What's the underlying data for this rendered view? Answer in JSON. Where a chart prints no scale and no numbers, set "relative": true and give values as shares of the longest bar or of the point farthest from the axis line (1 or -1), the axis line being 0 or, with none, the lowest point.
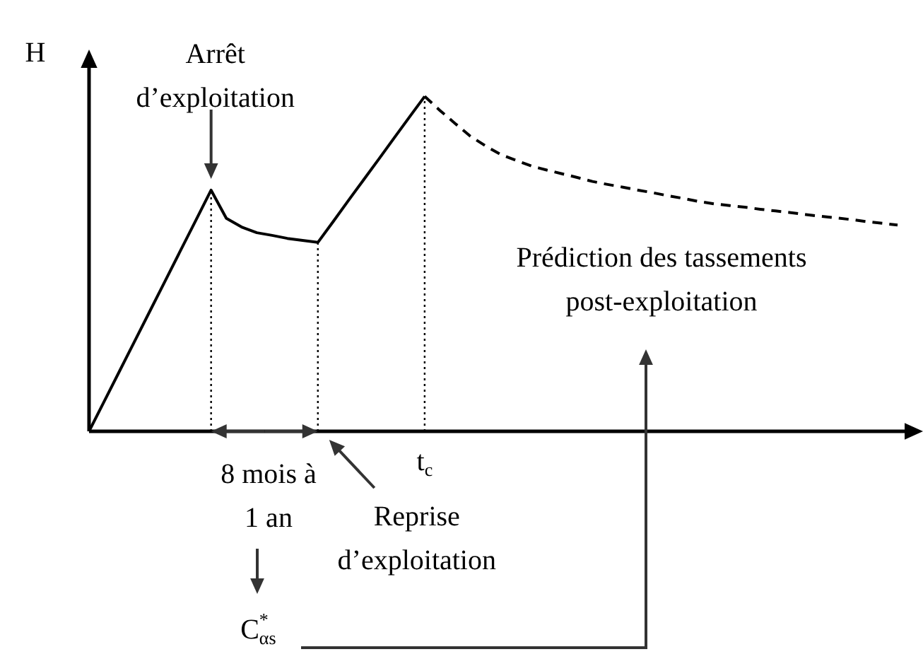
{
  "chart_data": {
    "type": "line",
    "relative": true,
    "ylabel": "H",
    "categories": [
      null,
      null,
      null,
      null,
      null,
      null,
      null,
      null,
      null,
      null,
      null,
      null,
      null,
      null,
      null,
      null,
      null,
      null,
      null,
      null,
      null,
      null,
      null,
      null,
      null,
      null,
      null,
      null,
      null,
      null,
      null,
      null,
      null,
      null,
      null,
      null,
      null,
      null,
      null,
      null,
      null,
      null,
      null,
      null,
      null,
      null,
      null,
      null,
      null,
      null,
      null,
      null,
      null,
      null
    ],
    "series": [
      {
        "values": [
          0,
          0.09,
          0.18,
          0.27,
          0.36,
          0.45,
          0.54,
          0.63,
          0.72,
          0.636,
          0.61,
          0.593,
          0.585,
          0.576,
          0.57,
          0.564,
          0.626,
          0.689,
          0.751,
          0.813,
          0.876,
          0.938,
          1,
          null,
          null,
          null,
          null,
          null,
          null,
          null,
          null,
          null,
          null,
          null,
          null,
          null,
          null,
          null,
          null,
          null,
          null,
          null,
          null,
          null,
          null,
          null,
          null,
          null,
          null,
          null,
          null,
          null,
          null,
          null
        ],
        "color": "#000000",
        "line_style": "solid"
      },
      {
        "values": [
          null,
          null,
          null,
          null,
          null,
          null,
          null,
          null,
          null,
          null,
          null,
          null,
          null,
          null,
          null,
          null,
          null,
          null,
          null,
          null,
          null,
          null,
          1,
          0.958,
          0.919,
          0.881,
          0.852,
          0.826,
          0.809,
          0.792,
          0.78,
          0.769,
          0.758,
          0.746,
          0.737,
          0.729,
          0.72,
          0.712,
          0.703,
          0.695,
          0.686,
          0.679,
          0.674,
          0.669,
          0.663,
          0.658,
          0.653,
          0.647,
          0.642,
          0.637,
          0.632,
          0.626,
          0.621,
          0.616
        ],
        "color": "#000000",
        "line_style": "dashed"
      }
    ],
    "annotations": [
      "Arrêt d’exploitation",
      "8 mois à 1 an",
      "Reprise d’exploitation",
      "t$_{c}$",
      "Prédiction des tassements post-exploitation",
      "C$^{*}$$_{αs}$"
    ]
  }
}
